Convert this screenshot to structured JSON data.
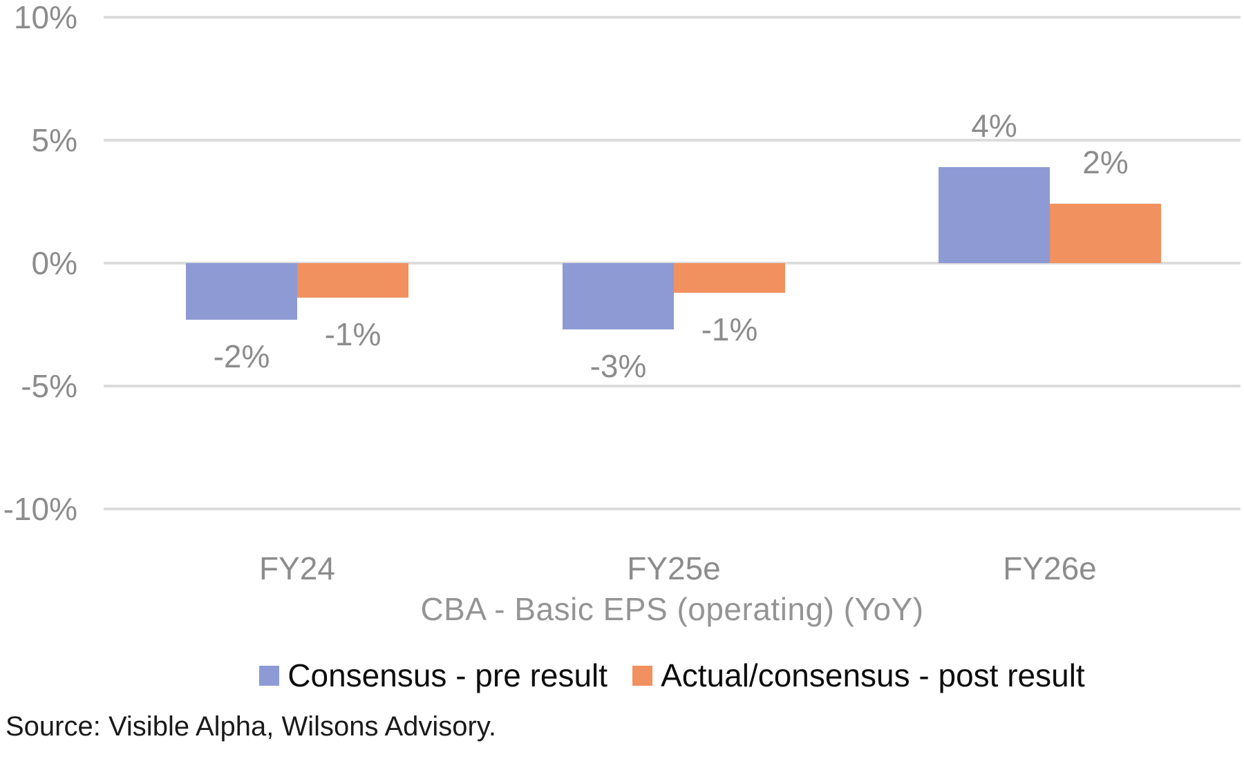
{
  "chart_data": {
    "type": "bar",
    "title": "CBA - Basic EPS (operating) (YoY)",
    "categories": [
      "FY24",
      "FY25e",
      "FY26e"
    ],
    "series": [
      {
        "name": "Consensus - pre result",
        "color": "#8D9AD4",
        "values_pct": [
          -2.3,
          -2.7,
          3.9
        ],
        "labels": [
          "-2%",
          "-3%",
          "4%"
        ]
      },
      {
        "name": "Actual/consensus - post result",
        "color": "#F1915F",
        "values_pct": [
          -1.4,
          -1.2,
          2.4
        ],
        "labels": [
          "-1%",
          "-1%",
          "2%"
        ]
      }
    ],
    "y_axis": {
      "min": -10,
      "max": 10,
      "unit": "%",
      "ticks": [
        10,
        5,
        0,
        -5,
        -10
      ],
      "tick_labels": [
        "10%",
        "5%",
        "0%",
        "-5%",
        "-10%"
      ]
    },
    "grid": true,
    "legend_position": "bottom",
    "data_label_position": "outside-end"
  },
  "source_note": "Source: Visible Alpha, Wilsons Advisory.",
  "colors": {
    "background": "#FFFFFF",
    "gridline": "#DCDCDC",
    "axis_text": "#8C8C8C",
    "data_label_text": "#8C8C8C",
    "title_text": "#949494",
    "legend_text": "#0D0D0D",
    "source_text": "#1A1A1A"
  }
}
